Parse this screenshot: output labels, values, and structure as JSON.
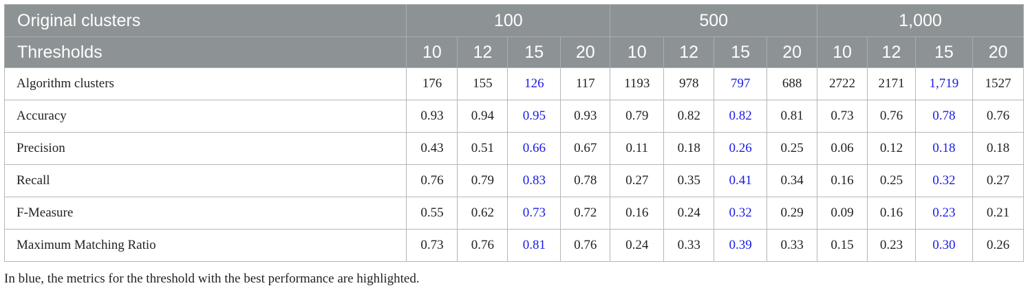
{
  "header": {
    "stub_row1": "Original clusters",
    "stub_row2": "Thresholds",
    "groups": [
      "100",
      "500",
      "1,000"
    ],
    "thresholds": [
      "10",
      "12",
      "15",
      "20",
      "10",
      "12",
      "15",
      "20",
      "10",
      "12",
      "15",
      "20"
    ]
  },
  "rows": [
    {
      "label": "Algorithm clusters",
      "values": [
        "176",
        "155",
        "126",
        "117",
        "1193",
        "978",
        "797",
        "688",
        "2722",
        "2171",
        "1,719",
        "1527"
      ]
    },
    {
      "label": "Accuracy",
      "values": [
        "0.93",
        "0.94",
        "0.95",
        "0.93",
        "0.79",
        "0.82",
        "0.82",
        "0.81",
        "0.73",
        "0.76",
        "0.78",
        "0.76"
      ]
    },
    {
      "label": "Precision",
      "values": [
        "0.43",
        "0.51",
        "0.66",
        "0.67",
        "0.11",
        "0.18",
        "0.26",
        "0.25",
        "0.06",
        "0.12",
        "0.18",
        "0.18"
      ]
    },
    {
      "label": "Recall",
      "values": [
        "0.76",
        "0.79",
        "0.83",
        "0.78",
        "0.27",
        "0.35",
        "0.41",
        "0.34",
        "0.16",
        "0.25",
        "0.32",
        "0.27"
      ]
    },
    {
      "label": "F-Measure",
      "values": [
        "0.55",
        "0.62",
        "0.73",
        "0.72",
        "0.16",
        "0.24",
        "0.32",
        "0.29",
        "0.09",
        "0.16",
        "0.23",
        "0.21"
      ]
    },
    {
      "label": "Maximum Matching Ratio",
      "values": [
        "0.73",
        "0.76",
        "0.81",
        "0.76",
        "0.24",
        "0.33",
        "0.39",
        "0.33",
        "0.15",
        "0.23",
        "0.30",
        "0.26"
      ]
    }
  ],
  "highlight_color": "#1a1ae6",
  "header_color": "#8d9295",
  "footnote": "In blue, the metrics for the threshold with the best performance are highlighted."
}
